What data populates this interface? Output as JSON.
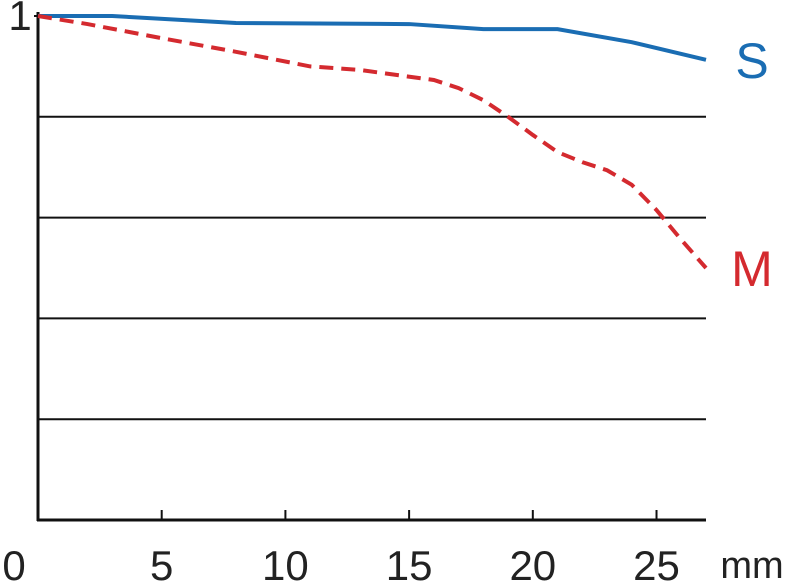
{
  "chart_data": {
    "type": "line",
    "x_label": "mm",
    "xlim": [
      0,
      27
    ],
    "xticks": [
      0,
      5,
      10,
      15,
      20,
      25
    ],
    "ylim": [
      0,
      1
    ],
    "yticks": [
      {
        "value": 0.2,
        "label": null
      },
      {
        "value": 0.4,
        "label": null
      },
      {
        "value": 0.6,
        "label": null
      },
      {
        "value": 0.8,
        "label": null
      },
      1
    ],
    "grid": true,
    "series": [
      {
        "name": "S",
        "color": "#1a6db3",
        "dash": false,
        "x": [
          0,
          3,
          8,
          15,
          18,
          21,
          24,
          27
        ],
        "values": [
          1.0,
          1.0,
          0.986,
          0.984,
          0.974,
          0.974,
          0.948,
          0.913
        ]
      },
      {
        "name": "M",
        "color": "#d42a2f",
        "dash": true,
        "x": [
          0,
          2,
          5,
          8,
          11,
          13,
          16,
          17,
          18,
          19,
          20,
          21,
          22,
          23,
          24,
          25,
          26,
          27
        ],
        "values": [
          1.0,
          0.984,
          0.956,
          0.929,
          0.9,
          0.893,
          0.873,
          0.857,
          0.833,
          0.8,
          0.764,
          0.73,
          0.71,
          0.694,
          0.665,
          0.615,
          0.556,
          0.5
        ]
      }
    ]
  }
}
